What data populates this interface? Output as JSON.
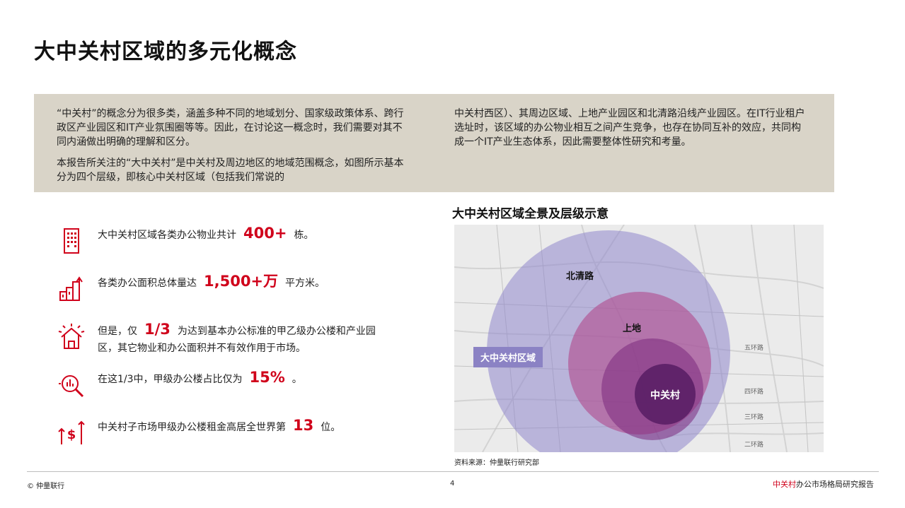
{
  "page": {
    "title": "大中关村区域的多元化概念"
  },
  "intro": {
    "left_p1": "“中关村”的概念分为很多类，涵盖多种不同的地域划分、国家级政策体系、跨行政区产业园区和IT产业氛围圈等等。因此，在讨论这一概念时，我们需要对其不同内涵做出明确的理解和区分。",
    "left_p2": "本报告所关注的“大中关村”是中关村及周边地区的地域范围概念，如图所示基本分为四个层级，即核心中关村区域（包括我们常说的",
    "right_p1": "中关村西区）、其周边区域、上地产业园区和北清路沿线产业园区。在IT行业租户选址时，该区域的办公物业相互之间产生竞争，也存在协同互补的效应，共同构成一个IT产业生态体系，因此需要整体性研究和考量。"
  },
  "facts": [
    {
      "icon": "building-icon",
      "pre": "大中关村区域各类办公物业共计",
      "value": "400+",
      "post": "栋。"
    },
    {
      "icon": "area-chart-icon",
      "pre": "各类办公面积总体量达",
      "value": "1,500+万",
      "post": "平方米。"
    },
    {
      "icon": "house-alert-icon",
      "pre": "但是，仅",
      "value": "1/3",
      "post": "为达到基本办公标准的甲乙级办公楼和产业园区，其它物业和办公面积并不有效作用于市场。"
    },
    {
      "icon": "magnify-chart-icon",
      "pre": "在这1/3中，甲级办公楼占比仅为",
      "value": "15%",
      "post": "。"
    },
    {
      "icon": "rent-rise-icon",
      "pre": "中关村子市场甲级办公楼租金高居全世界第",
      "value": "13",
      "post": "位。"
    }
  ],
  "map": {
    "title": "大中关村区域全景及层级示意",
    "labels": {
      "beiqinglu": "北清路",
      "shangdi": "上地",
      "zone": "大中关村区域",
      "core": "中关村"
    },
    "ring_roads": [
      "五环路",
      "四环路",
      "三环路",
      "二环路"
    ],
    "colors": {
      "outer": "#8f86cc",
      "middle": "#b04a8c",
      "inner": "#7c2a7e",
      "core": "#5a1f66"
    },
    "source": "资料来源：仲量联行研究部"
  },
  "footer": {
    "left": "© 仲量联行",
    "page": "4",
    "right_red": "中关村",
    "right_rest": "办公市场格局研究报告"
  }
}
